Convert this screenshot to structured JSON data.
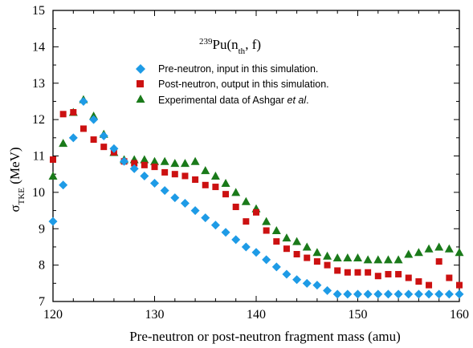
{
  "chart_data": {
    "type": "scatter",
    "xlabel": "Pre-neutron or post-neutron fragment mass (amu)",
    "ylabel": {
      "main": "σ",
      "sub": "TKE",
      "rest": " (MeV)"
    },
    "xlim": [
      120,
      160
    ],
    "ylim": [
      7,
      15
    ],
    "xticks": [
      120,
      130,
      140,
      150,
      160
    ],
    "yticks": [
      7,
      8,
      9,
      10,
      11,
      12,
      13,
      14,
      15
    ],
    "grid": false,
    "legend_position": "top-center",
    "annotation": {
      "sup": "239",
      "base": "Pu(n",
      "sub": "th",
      "tail": ", f)"
    },
    "series": [
      {
        "name": "Pre-neutron, input in this simulation.",
        "marker": "diamond",
        "color": "#1e9be6",
        "x": [
          120,
          121,
          122,
          123,
          124,
          125,
          126,
          127,
          128,
          129,
          130,
          131,
          132,
          133,
          134,
          135,
          136,
          137,
          138,
          139,
          140,
          141,
          142,
          143,
          144,
          145,
          146,
          147,
          148,
          149,
          150,
          151,
          152,
          153,
          154,
          155,
          156,
          157,
          158,
          159,
          160
        ],
        "y": [
          9.2,
          10.2,
          11.5,
          12.5,
          12.0,
          11.55,
          11.2,
          10.85,
          10.65,
          10.45,
          10.25,
          10.05,
          9.85,
          9.7,
          9.5,
          9.3,
          9.1,
          8.9,
          8.7,
          8.5,
          8.35,
          8.15,
          7.95,
          7.75,
          7.6,
          7.5,
          7.45,
          7.3,
          7.2,
          7.2,
          7.2,
          7.2,
          7.2,
          7.2,
          7.2,
          7.2,
          7.2,
          7.2,
          7.2,
          7.2,
          7.2
        ]
      },
      {
        "name": "Post-neutron, output in this simulation.",
        "marker": "square",
        "color": "#cc1111",
        "x": [
          120,
          121,
          122,
          123,
          124,
          125,
          126,
          127,
          128,
          129,
          130,
          131,
          132,
          133,
          134,
          135,
          136,
          137,
          138,
          139,
          140,
          141,
          142,
          143,
          144,
          145,
          146,
          147,
          148,
          149,
          150,
          151,
          152,
          153,
          154,
          155,
          156,
          157,
          158,
          159,
          160
        ],
        "y": [
          10.9,
          12.15,
          12.2,
          11.75,
          11.45,
          11.25,
          11.1,
          10.85,
          10.8,
          10.75,
          10.7,
          10.55,
          10.5,
          10.45,
          10.35,
          10.2,
          10.15,
          9.95,
          9.6,
          9.2,
          9.45,
          8.95,
          8.65,
          8.45,
          8.3,
          8.2,
          8.1,
          8.0,
          7.85,
          7.8,
          7.8,
          7.8,
          7.7,
          7.75,
          7.75,
          7.65,
          7.55,
          7.45,
          8.1,
          7.65,
          7.45
        ]
      },
      {
        "name": "Experimental data of Ashgar et al.",
        "name_parts": {
          "plain": "Experimental data of Ashgar ",
          "italic": "et al",
          "tail": "."
        },
        "marker": "triangle",
        "color": "#1a7a1a",
        "x": [
          120,
          121,
          122,
          123,
          124,
          125,
          126,
          127,
          128,
          129,
          130,
          131,
          132,
          133,
          134,
          135,
          136,
          137,
          138,
          139,
          140,
          141,
          142,
          143,
          144,
          145,
          146,
          147,
          148,
          149,
          150,
          151,
          152,
          153,
          154,
          155,
          156,
          157,
          158,
          159,
          160
        ],
        "y": [
          10.45,
          11.35,
          12.2,
          12.55,
          12.1,
          11.6,
          11.1,
          10.9,
          10.9,
          10.9,
          10.85,
          10.85,
          10.8,
          10.8,
          10.85,
          10.6,
          10.45,
          10.25,
          10.0,
          9.75,
          9.55,
          9.2,
          8.95,
          8.75,
          8.65,
          8.5,
          8.35,
          8.25,
          8.2,
          8.2,
          8.2,
          8.15,
          8.15,
          8.15,
          8.15,
          8.3,
          8.35,
          8.45,
          8.5,
          8.45,
          8.35
        ]
      }
    ]
  }
}
